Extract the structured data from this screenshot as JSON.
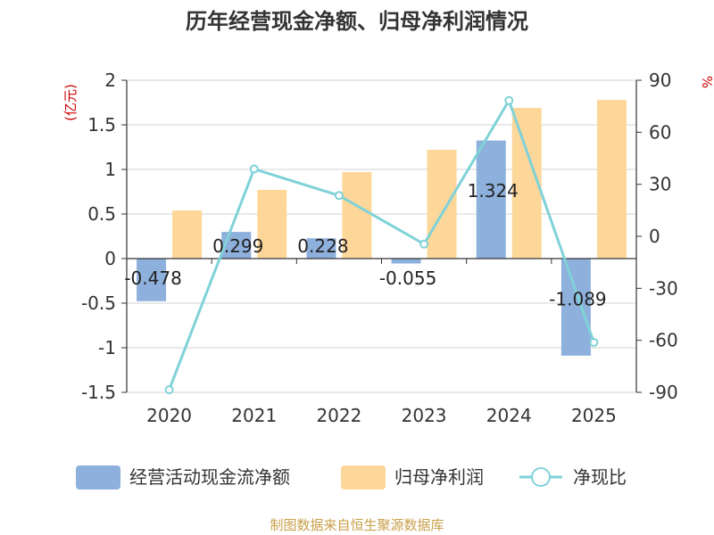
{
  "chart_data": {
    "type": "bar",
    "title": "历年经营现金净额、归母净利润情况",
    "categories": [
      "2020",
      "2021",
      "2022",
      "2023",
      "2024",
      "2025"
    ],
    "left_axis": {
      "unit_label": "(亿元)",
      "ylim": [
        -1.5,
        2
      ],
      "ticks": [
        2,
        1.5,
        1,
        0.5,
        0,
        -0.5,
        -1,
        -1.5
      ],
      "tick_labels": [
        "2",
        "1.5",
        "1",
        "0.5",
        "0",
        "-0.5",
        "-1",
        "-1.5"
      ]
    },
    "right_axis": {
      "unit_label": "%",
      "ylim": [
        -90,
        90
      ],
      "ticks": [
        90,
        60,
        30,
        0,
        -30,
        -60,
        -90
      ],
      "tick_labels": [
        "90",
        "60",
        "30",
        "0",
        "-30",
        "-60",
        "-90"
      ]
    },
    "series": [
      {
        "name": "经营活动现金流净额",
        "kind": "bar",
        "axis": "left",
        "color": "#8eb0dc",
        "values": [
          -0.478,
          0.299,
          0.228,
          -0.055,
          1.324,
          -1.089
        ],
        "labels": [
          "-0.478",
          "0.299",
          "0.228",
          "-0.055",
          "1.324",
          "-1.089"
        ]
      },
      {
        "name": "归母净利润",
        "kind": "bar",
        "axis": "left",
        "color": "#fdd79a",
        "values": [
          0.54,
          0.77,
          0.97,
          1.22,
          1.69,
          1.78
        ]
      },
      {
        "name": "净现比",
        "kind": "line",
        "axis": "right",
        "color": "#7fd2d8",
        "values": [
          -88.5,
          38.8,
          23.5,
          -4.5,
          78.3,
          -61.2
        ]
      }
    ],
    "source": "制图数据来自恒生聚源数据库"
  }
}
